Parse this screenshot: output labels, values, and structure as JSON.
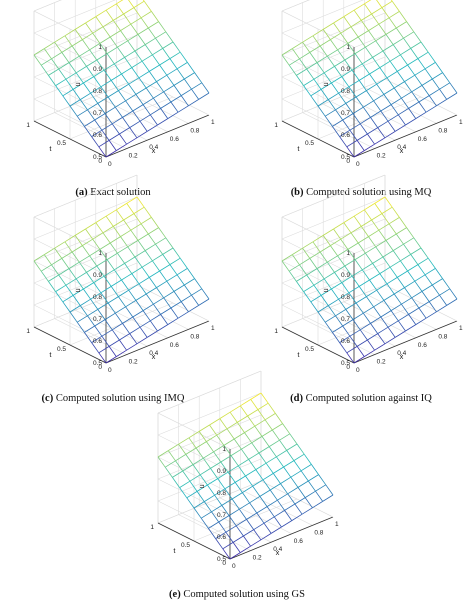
{
  "chart_data": [
    {
      "type": "surface",
      "panel_tag": "(a)",
      "caption": "Exact solution",
      "xlabel": "x",
      "ylabel": "t",
      "zlabel": "u",
      "xlim": [
        0,
        1
      ],
      "ylim": [
        0,
        1
      ],
      "zlim": [
        0.5,
        1
      ],
      "x_ticks": [
        "0",
        "0.2",
        "0.4",
        "0.6",
        "0.8",
        "1"
      ],
      "t_ticks": [
        "0",
        "0.5",
        "1"
      ],
      "z_ticks": [
        "0.5",
        "0.6",
        "0.7",
        "0.8",
        "0.9",
        "1"
      ],
      "grid": true,
      "mesh_points": 11,
      "surface": {
        "u_at_x0_t0": 0.5,
        "u_at_x1_t0": 0.6,
        "u_at_x0_t1": 0.8,
        "u_at_x1_t1": 0.9
      }
    },
    {
      "type": "surface",
      "panel_tag": "(b)",
      "caption": "Computed solution using MQ",
      "xlabel": "x",
      "ylabel": "t",
      "zlabel": "u",
      "xlim": [
        0,
        1
      ],
      "ylim": [
        0,
        1
      ],
      "zlim": [
        0.5,
        1
      ],
      "x_ticks": [
        "0",
        "0.2",
        "0.4",
        "0.6",
        "0.8",
        "1"
      ],
      "t_ticks": [
        "0",
        "0.5",
        "1"
      ],
      "z_ticks": [
        "0.5",
        "0.6",
        "0.7",
        "0.8",
        "0.9",
        "1"
      ],
      "grid": true,
      "mesh_points": 11,
      "surface": {
        "u_at_x0_t0": 0.5,
        "u_at_x1_t0": 0.6,
        "u_at_x0_t1": 0.8,
        "u_at_x1_t1": 0.9
      }
    },
    {
      "type": "surface",
      "panel_tag": "(c)",
      "caption": "Computed solution using IMQ",
      "xlabel": "x",
      "ylabel": "t",
      "zlabel": "u",
      "xlim": [
        0,
        1
      ],
      "ylim": [
        0,
        1
      ],
      "zlim": [
        0.5,
        1
      ],
      "x_ticks": [
        "0",
        "0.2",
        "0.4",
        "0.6",
        "0.8",
        "1"
      ],
      "t_ticks": [
        "0",
        "0.5",
        "1"
      ],
      "z_ticks": [
        "0.5",
        "0.6",
        "0.7",
        "0.8",
        "0.9",
        "1"
      ],
      "grid": true,
      "mesh_points": 11,
      "surface": {
        "u_at_x0_t0": 0.5,
        "u_at_x1_t0": 0.6,
        "u_at_x0_t1": 0.8,
        "u_at_x1_t1": 0.9
      }
    },
    {
      "type": "surface",
      "panel_tag": "(d)",
      "caption": "Computed solution against IQ",
      "xlabel": "x",
      "ylabel": "t",
      "zlabel": "u",
      "xlim": [
        0,
        1
      ],
      "ylim": [
        0,
        1
      ],
      "zlim": [
        0.5,
        1
      ],
      "x_ticks": [
        "0",
        "0.2",
        "0.4",
        "0.6",
        "0.8",
        "1"
      ],
      "t_ticks": [
        "0",
        "0.5",
        "1"
      ],
      "z_ticks": [
        "0.5",
        "0.6",
        "0.7",
        "0.8",
        "0.9",
        "1"
      ],
      "grid": true,
      "mesh_points": 11,
      "surface": {
        "u_at_x0_t0": 0.5,
        "u_at_x1_t0": 0.6,
        "u_at_x0_t1": 0.8,
        "u_at_x1_t1": 0.9
      }
    },
    {
      "type": "surface",
      "panel_tag": "(e)",
      "caption": "Computed solution using GS",
      "xlabel": "x",
      "ylabel": "t",
      "zlabel": "u",
      "xlim": [
        0,
        1
      ],
      "ylim": [
        0,
        1
      ],
      "zlim": [
        0.5,
        1
      ],
      "x_ticks": [
        "0",
        "0.2",
        "0.4",
        "0.6",
        "0.8",
        "1"
      ],
      "t_ticks": [
        "0",
        "0.5",
        "1"
      ],
      "z_ticks": [
        "0.5",
        "0.6",
        "0.7",
        "0.8",
        "0.9",
        "1"
      ],
      "grid": true,
      "mesh_points": 11,
      "surface": {
        "u_at_x0_t0": 0.5,
        "u_at_x1_t0": 0.6,
        "u_at_x0_t1": 0.8,
        "u_at_x1_t1": 0.9
      }
    }
  ],
  "colors": {
    "colormap": "parula",
    "low": "#3d26a8",
    "mid": "#1fb9c0",
    "high": "#f9e92a",
    "axis_grid": "#dcdcdc",
    "axis_line": "#333333"
  }
}
